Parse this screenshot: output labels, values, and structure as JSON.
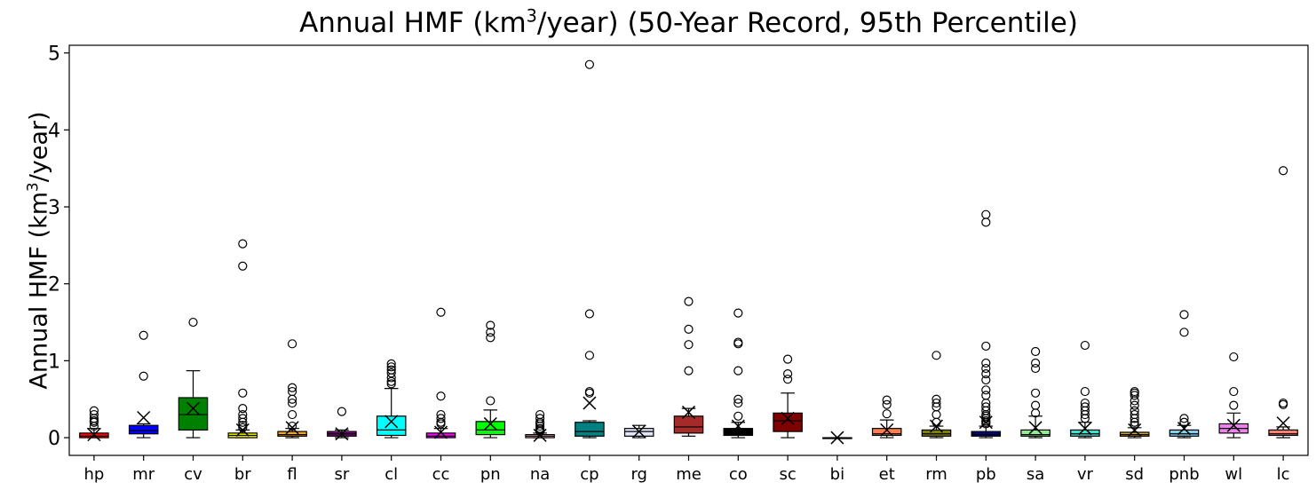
{
  "title_parts": {
    "pre": "Annual HMF (km",
    "sup": "3",
    "post": "/year) (50-Year Record, 95th Percentile)"
  },
  "ylabel_parts": {
    "pre": "Annual HMF (km",
    "sup": "3",
    "post": "/year)"
  },
  "chart_data": {
    "type": "box",
    "title": "Annual HMF (km3/year) (50-Year Record, 95th Percentile)",
    "xlabel": "",
    "ylabel": "Annual HMF (km3/year)",
    "ylim": [
      -0.23,
      5.1
    ],
    "yticks": [
      0,
      1,
      2,
      3,
      4,
      5
    ],
    "grid": false,
    "legend": "none",
    "mean_marker": "x",
    "categories": [
      "hp",
      "mr",
      "cv",
      "br",
      "fl",
      "sr",
      "cl",
      "cc",
      "pn",
      "na",
      "cp",
      "rg",
      "me",
      "co",
      "sc",
      "bi",
      "et",
      "rm",
      "pb",
      "sa",
      "vr",
      "sd",
      "pnb",
      "wl",
      "lc"
    ],
    "boxes": [
      {
        "label": "hp",
        "color": "#ff0000",
        "wlo": 0.0,
        "q1": 0.0,
        "med": 0.02,
        "q3": 0.06,
        "whi": 0.12,
        "mean": 0.04,
        "outliers": [
          0.15,
          0.2,
          0.22,
          0.25,
          0.3,
          0.35
        ]
      },
      {
        "label": "mr",
        "color": "#0000ff",
        "wlo": 0.0,
        "q1": 0.05,
        "med": 0.09,
        "q3": 0.16,
        "whi": 0.18,
        "mean": 0.26,
        "outliers": [
          0.8,
          1.33
        ]
      },
      {
        "label": "cv",
        "color": "#008000",
        "wlo": 0.0,
        "q1": 0.1,
        "med": 0.3,
        "q3": 0.52,
        "whi": 0.87,
        "mean": 0.38,
        "outliers": [
          1.5
        ]
      },
      {
        "label": "br",
        "color": "#ffff00",
        "wlo": 0.0,
        "q1": 0.0,
        "med": 0.03,
        "q3": 0.06,
        "whi": 0.1,
        "mean": 0.1,
        "outliers": [
          0.13,
          0.16,
          0.2,
          0.25,
          0.3,
          0.38,
          0.58,
          2.23,
          2.52
        ]
      },
      {
        "label": "fl",
        "color": "#ffa500",
        "wlo": 0.0,
        "q1": 0.02,
        "med": 0.04,
        "q3": 0.08,
        "whi": 0.12,
        "mean": 0.13,
        "outliers": [
          0.15,
          0.3,
          0.45,
          0.5,
          0.6,
          0.65,
          1.22
        ]
      },
      {
        "label": "sr",
        "color": "#800080",
        "wlo": 0.0,
        "q1": 0.02,
        "med": 0.05,
        "q3": 0.08,
        "whi": 0.1,
        "mean": 0.05,
        "outliers": [
          0.34
        ]
      },
      {
        "label": "cl",
        "color": "#00ffff",
        "wlo": 0.0,
        "q1": 0.03,
        "med": 0.1,
        "q3": 0.28,
        "whi": 0.64,
        "mean": 0.21,
        "outliers": [
          0.7,
          0.73,
          0.78,
          0.84,
          0.88,
          0.92,
          0.96
        ]
      },
      {
        "label": "cc",
        "color": "#ff00ff",
        "wlo": 0.0,
        "q1": 0.0,
        "med": 0.02,
        "q3": 0.06,
        "whi": 0.12,
        "mean": 0.07,
        "outliers": [
          0.18,
          0.2,
          0.25,
          0.3,
          0.54,
          1.63
        ]
      },
      {
        "label": "pn",
        "color": "#00ff00",
        "wlo": 0.0,
        "q1": 0.04,
        "med": 0.1,
        "q3": 0.21,
        "whi": 0.36,
        "mean": 0.18,
        "outliers": [
          0.48,
          1.3,
          1.37,
          1.46
        ]
      },
      {
        "label": "na",
        "color": "#ffc0cb",
        "wlo": 0.0,
        "q1": 0.0,
        "med": 0.02,
        "q3": 0.04,
        "whi": 0.06,
        "mean": 0.03,
        "outliers": [
          0.08,
          0.1,
          0.12,
          0.15,
          0.18,
          0.2,
          0.25,
          0.3
        ]
      },
      {
        "label": "cp",
        "color": "#008080",
        "wlo": 0.0,
        "q1": 0.02,
        "med": 0.08,
        "q3": 0.2,
        "whi": 0.22,
        "mean": 0.45,
        "outliers": [
          0.58,
          0.6,
          1.07,
          1.61,
          4.85
        ]
      },
      {
        "label": "rg",
        "color": "#e6e6fa",
        "wlo": 0.0,
        "q1": 0.02,
        "med": 0.08,
        "q3": 0.12,
        "whi": 0.16,
        "mean": 0.08,
        "outliers": []
      },
      {
        "label": "me",
        "color": "#a52a2a",
        "wlo": 0.02,
        "q1": 0.06,
        "med": 0.14,
        "q3": 0.28,
        "whi": 0.38,
        "mean": 0.33,
        "outliers": [
          0.87,
          1.21,
          1.41,
          1.77
        ]
      },
      {
        "label": "co",
        "color": "#000000",
        "wlo": 0.0,
        "q1": 0.03,
        "med": 0.07,
        "q3": 0.12,
        "whi": 0.2,
        "mean": 0.15,
        "outliers": [
          0.28,
          0.45,
          0.5,
          0.87,
          1.22,
          1.24,
          1.62
        ]
      },
      {
        "label": "sc",
        "color": "#800000",
        "wlo": 0.0,
        "q1": 0.08,
        "med": 0.22,
        "q3": 0.32,
        "whi": 0.58,
        "mean": 0.25,
        "outliers": [
          0.76,
          0.83,
          1.02
        ]
      },
      {
        "label": "bi",
        "color": "#808000",
        "wlo": 0.0,
        "q1": 0.0,
        "med": 0.0,
        "q3": 0.0,
        "whi": 0.0,
        "mean": 0.0,
        "outliers": []
      },
      {
        "label": "et",
        "color": "#ff7f50",
        "wlo": 0.0,
        "q1": 0.03,
        "med": 0.05,
        "q3": 0.12,
        "whi": 0.23,
        "mean": 0.1,
        "outliers": [
          0.31,
          0.43,
          0.49
        ]
      },
      {
        "label": "rm",
        "color": "#808000",
        "wlo": 0.0,
        "q1": 0.02,
        "med": 0.05,
        "q3": 0.1,
        "whi": 0.15,
        "mean": 0.15,
        "outliers": [
          0.2,
          0.3,
          0.4,
          0.45,
          0.5,
          1.07
        ]
      },
      {
        "label": "pb",
        "color": "#000080",
        "wlo": 0.0,
        "q1": 0.02,
        "med": 0.04,
        "q3": 0.08,
        "whi": 0.15,
        "mean": 0.2,
        "outliers": [
          0.18,
          0.2,
          0.22,
          0.25,
          0.28,
          0.3,
          0.35,
          0.4,
          0.45,
          0.55,
          0.62,
          0.75,
          0.83,
          0.9,
          0.97,
          1.19,
          2.8,
          2.9
        ]
      },
      {
        "label": "sa",
        "color": "#90ee90",
        "wlo": 0.0,
        "q1": 0.02,
        "med": 0.04,
        "q3": 0.1,
        "whi": 0.28,
        "mean": 0.13,
        "outliers": [
          0.32,
          0.42,
          0.58,
          0.9,
          0.97,
          1.12
        ]
      },
      {
        "label": "vr",
        "color": "#40e0d0",
        "wlo": 0.0,
        "q1": 0.02,
        "med": 0.05,
        "q3": 0.1,
        "whi": 0.2,
        "mean": 0.12,
        "outliers": [
          0.25,
          0.3,
          0.35,
          0.4,
          0.45,
          0.6,
          1.2
        ]
      },
      {
        "label": "sd",
        "color": "#daa520",
        "wlo": 0.0,
        "q1": 0.02,
        "med": 0.04,
        "q3": 0.07,
        "whi": 0.13,
        "mean": 0.1,
        "outliers": [
          0.16,
          0.2,
          0.25,
          0.3,
          0.35,
          0.42,
          0.48,
          0.55,
          0.58,
          0.6
        ]
      },
      {
        "label": "pnb",
        "color": "#87ceeb",
        "wlo": 0.0,
        "q1": 0.02,
        "med": 0.05,
        "q3": 0.1,
        "whi": 0.16,
        "mean": 0.12,
        "outliers": [
          0.2,
          0.25,
          1.37,
          1.6
        ]
      },
      {
        "label": "wl",
        "color": "#ee82ee",
        "wlo": 0.0,
        "q1": 0.06,
        "med": 0.12,
        "q3": 0.18,
        "whi": 0.32,
        "mean": 0.16,
        "outliers": [
          0.42,
          0.6,
          1.05
        ]
      },
      {
        "label": "lc",
        "color": "#fa8072",
        "wlo": 0.0,
        "q1": 0.03,
        "med": 0.05,
        "q3": 0.1,
        "whi": 0.14,
        "mean": 0.19,
        "outliers": [
          0.43,
          0.45,
          3.47
        ]
      }
    ]
  }
}
